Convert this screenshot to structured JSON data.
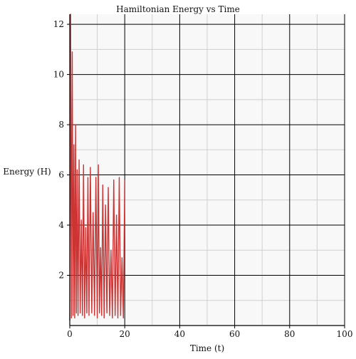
{
  "chart_data": {
    "type": "line",
    "title": "Hamiltonian Energy vs Time",
    "xlabel": "Time (t)",
    "ylabel": "Energy (H)",
    "xlim": [
      0,
      100
    ],
    "ylim": [
      0,
      12.4
    ],
    "x_ticks": [
      0,
      20,
      40,
      60,
      80,
      100
    ],
    "y_ticks": [
      2,
      4,
      6,
      8,
      10,
      12
    ],
    "x_minor_step": 10,
    "y_minor_step": 1,
    "grid": true,
    "legend": "none",
    "series": [
      {
        "color": "#cc3333",
        "x": [
          0,
          0.3,
          0.6,
          0.9,
          1.2,
          1.5,
          1.8,
          2.1,
          2.4,
          2.7,
          3.0,
          3.4,
          3.8,
          4.2,
          4.6,
          5.0,
          5.4,
          5.8,
          6.2,
          6.6,
          7.0,
          7.5,
          8.0,
          8.5,
          9.0,
          9.5,
          10.0,
          10.4,
          10.8,
          11.2,
          11.6,
          12.0,
          12.5,
          13.0,
          13.5,
          14.0,
          14.5,
          15.0,
          15.5,
          16.0,
          16.5,
          17.0,
          17.5,
          18.0,
          18.5,
          19.0,
          19.5,
          20.0
        ],
        "y": [
          0.2,
          12.4,
          0.3,
          10.9,
          0.4,
          7.2,
          0.3,
          8.0,
          0.5,
          6.2,
          0.4,
          6.6,
          0.5,
          4.2,
          0.4,
          6.4,
          0.3,
          3.9,
          0.5,
          5.9,
          0.4,
          6.3,
          0.5,
          4.5,
          0.4,
          5.9,
          0.3,
          6.4,
          0.5,
          3.1,
          0.4,
          5.6,
          0.3,
          4.8,
          0.5,
          5.5,
          0.4,
          3.0,
          0.3,
          5.8,
          0.4,
          4.4,
          0.3,
          5.9,
          0.4,
          2.7,
          0.3,
          5.8
        ]
      }
    ]
  }
}
